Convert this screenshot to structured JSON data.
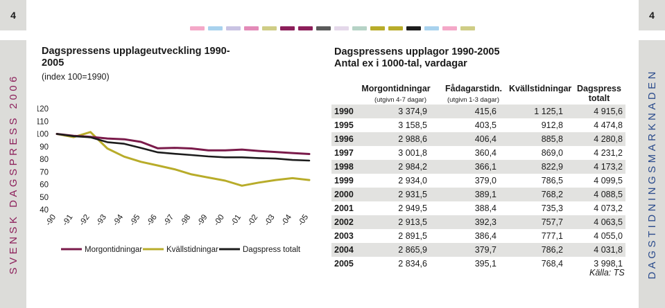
{
  "page": {
    "number_left": "4",
    "number_right": "4"
  },
  "sidebar": {
    "left_text": "SVENSK DAGSPRESS 2006",
    "right_text": "DAGSTIDNINGSMARKNADEN"
  },
  "colors": {
    "morgon": "#7a1a4a",
    "kvall": "#b8ac2a",
    "total": "#1c1c1c",
    "swatches": [
      "#f4a8c8",
      "#a8d2ee",
      "#c9c3e3",
      "#e38bb8",
      "#cfcd86",
      "#8c1f5a",
      "#8c1f5a",
      "#5a5a5a",
      "#e4d8ea",
      "#b6d3c6",
      "#b8ac2a",
      "#b8ac2a",
      "#1c1c1c",
      "#a8d2ee",
      "#f4a8c8",
      "#cfcd86"
    ]
  },
  "chart_data": {
    "type": "line",
    "title": "Dagspressens upplageutveckling 1990-2005",
    "subtitle": "(index 100=1990)",
    "categories": [
      "-90",
      "-91",
      "-92",
      "-93",
      "-94",
      "-95",
      "-96",
      "-97",
      "-98",
      "-99",
      "-00",
      "-01",
      "-02",
      "-03",
      "-04",
      "-05"
    ],
    "ylim": [
      40,
      120
    ],
    "yticks": [
      120,
      110,
      100,
      90,
      80,
      70,
      60,
      50,
      40
    ],
    "series": [
      {
        "name": "Morgontidningar",
        "values": [
          100,
          98.5,
          97.7,
          96.4,
          95.8,
          93.7,
          88.6,
          89.0,
          88.5,
          87.0,
          87.0,
          87.6,
          86.5,
          85.7,
          84.9,
          84.1
        ]
      },
      {
        "name": "Kvällstidningar",
        "values": [
          100,
          97.5,
          101.5,
          88.5,
          82.0,
          77.9,
          75.0,
          72.0,
          68.0,
          65.5,
          63.0,
          59.0,
          61.5,
          63.5,
          65.0,
          63.5
        ]
      },
      {
        "name": "Dagspress totalt",
        "values": [
          100,
          98.2,
          97.3,
          93.5,
          92.2,
          88.9,
          85.4,
          84.3,
          83.3,
          82.2,
          81.5,
          81.5,
          80.9,
          80.5,
          79.4,
          78.9
        ]
      }
    ]
  },
  "table": {
    "title": "Dagspressens upplagor 1990-2005",
    "subtitle": "Antal ex i 1000-tal, vardagar",
    "columns": [
      {
        "label": "Morgontidningar",
        "sub": "(utgivn 4-7 dagar)"
      },
      {
        "label": "Fådagarstidn.",
        "sub": "(utgivn 1-3 dagar)"
      },
      {
        "label": "Kvällstidningar",
        "sub": ""
      },
      {
        "label": "Dagspress totalt",
        "sub": ""
      }
    ],
    "rows": [
      {
        "year": "1990",
        "cells": [
          "3 374,9",
          "415,6",
          "1 125,1",
          "4 915,6"
        ]
      },
      {
        "year": "1995",
        "cells": [
          "3 158,5",
          "403,5",
          "912,8",
          "4 474,8"
        ]
      },
      {
        "year": "1996",
        "cells": [
          "2 988,6",
          "406,4",
          "885,8",
          "4 280,8"
        ]
      },
      {
        "year": "1997",
        "cells": [
          "3 001,8",
          "360,4",
          "869,0",
          "4 231,2"
        ]
      },
      {
        "year": "1998",
        "cells": [
          "2 984,2",
          "366,1",
          "822,9",
          "4 173,2"
        ]
      },
      {
        "year": "1999",
        "cells": [
          "2 934,0",
          "379,0",
          "786,5",
          "4 099,5"
        ]
      },
      {
        "year": "2000",
        "cells": [
          "2 931,5",
          "389,1",
          "768,2",
          "4 088,5"
        ]
      },
      {
        "year": "2001",
        "cells": [
          "2 949,5",
          "388,4",
          "735,3",
          "4 073,2"
        ]
      },
      {
        "year": "2002",
        "cells": [
          "2 913,5",
          "392,3",
          "757,7",
          "4 063,5"
        ]
      },
      {
        "year": "2003",
        "cells": [
          "2 891,5",
          "386,4",
          "777,1",
          "4 055,0"
        ]
      },
      {
        "year": "2004",
        "cells": [
          "2 865,9",
          "379,7",
          "786,2",
          "4 031,8"
        ]
      },
      {
        "year": "2005",
        "cells": [
          "2 834,6",
          "395,1",
          "768,4",
          "3 998,1"
        ]
      }
    ],
    "source": "Källa: TS"
  }
}
